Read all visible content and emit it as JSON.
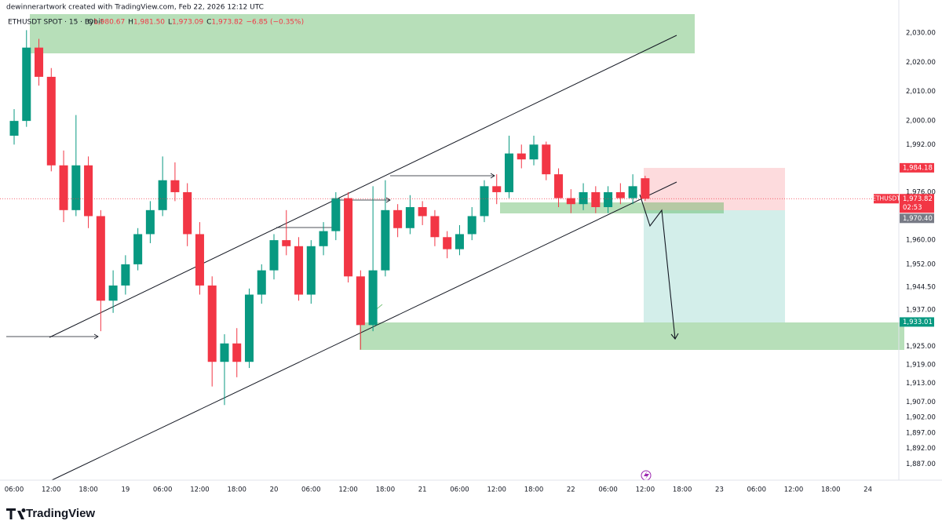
{
  "header": {
    "caption": "dewinnerartwork created with TradingView.com, Feb 22, 2026 12:12 UTC",
    "brand": "TradingView"
  },
  "chart_data": {
    "type": "candlestick",
    "symbol": "ETHUSDT SPOT · 15 · Bybit",
    "ohlc_legend": [
      {
        "key": "O",
        "text": "1,980.67"
      },
      {
        "key": "H",
        "text": "1,981.50"
      },
      {
        "key": "L",
        "text": "1,973.09"
      },
      {
        "key": "C",
        "text": "1,973.82"
      },
      {
        "key": "",
        "text": "−6.85 (−0.35%)"
      }
    ],
    "up_color": "#089981",
    "down_color": "#f23645",
    "log_scale": true,
    "grid": false,
    "xlim": [
      -1.27,
      143
    ],
    "ylim": [
      1881.9,
      2041.4
    ],
    "xticks": [
      {
        "value": 0,
        "label": "06:00"
      },
      {
        "value": 6,
        "label": "12:00"
      },
      {
        "value": 12,
        "label": "18:00"
      },
      {
        "value": 18,
        "label": "19"
      },
      {
        "value": 24,
        "label": "06:00"
      },
      {
        "value": 30,
        "label": "12:00"
      },
      {
        "value": 36,
        "label": "18:00"
      },
      {
        "value": 42,
        "label": "20"
      },
      {
        "value": 48,
        "label": "06:00"
      },
      {
        "value": 54,
        "label": "12:00"
      },
      {
        "value": 60,
        "label": "18:00"
      },
      {
        "value": 66,
        "label": "21"
      },
      {
        "value": 72,
        "label": "06:00"
      },
      {
        "value": 78,
        "label": "12:00"
      },
      {
        "value": 84,
        "label": "18:00"
      },
      {
        "value": 90,
        "label": "22"
      },
      {
        "value": 96,
        "label": "06:00"
      },
      {
        "value": 102,
        "label": "12:00"
      },
      {
        "value": 108,
        "label": "18:00"
      },
      {
        "value": 114,
        "label": "23"
      },
      {
        "value": 120,
        "label": "06:00"
      },
      {
        "value": 126,
        "label": "12:00"
      },
      {
        "value": 132,
        "label": "18:00"
      },
      {
        "value": 138,
        "label": "24"
      }
    ],
    "yticks": [
      {
        "value": 2030,
        "label": "2,030.00"
      },
      {
        "value": 2020,
        "label": "2,020.00"
      },
      {
        "value": 2010,
        "label": "2,010.00"
      },
      {
        "value": 2000,
        "label": "2,000.00"
      },
      {
        "value": 1992,
        "label": "1,992.00"
      },
      {
        "value": 1976,
        "label": "1,976.00"
      },
      {
        "value": 1960,
        "label": "1,960.00"
      },
      {
        "value": 1952,
        "label": "1,952.00"
      },
      {
        "value": 1944.5,
        "label": "1,944.50"
      },
      {
        "value": 1937,
        "label": "1,937.00"
      },
      {
        "value": 1925,
        "label": "1,925.00"
      },
      {
        "value": 1919,
        "label": "1,919.00"
      },
      {
        "value": 1913,
        "label": "1,913.00"
      },
      {
        "value": 1907,
        "label": "1,907.00"
      },
      {
        "value": 1902,
        "label": "1,902.00"
      },
      {
        "value": 1897,
        "label": "1,897.00"
      },
      {
        "value": 1892,
        "label": "1,892.00"
      },
      {
        "value": 1887,
        "label": "1,887.00"
      }
    ],
    "price_markers": [
      {
        "value": 1984.18,
        "label": "1,984.18",
        "color": "#f23645"
      },
      {
        "value": 1973.82,
        "label": "1,973.82",
        "color": "#f23645",
        "name": "ETHUSDT",
        "countdown": "02:53"
      },
      {
        "value": 1970.4,
        "label": "1,970.40",
        "color": "#787b86"
      },
      {
        "value": 1933.01,
        "label": "1,933.01",
        "color": "#089981"
      }
    ],
    "x": [
      0,
      2,
      4,
      6,
      8,
      10,
      12,
      14,
      16,
      18,
      20,
      22,
      24,
      26,
      28,
      30,
      32,
      34,
      36,
      38,
      40,
      42,
      44,
      46,
      48,
      50,
      52,
      54,
      56,
      58,
      60,
      62,
      64,
      66,
      68,
      70,
      72,
      74,
      76,
      78,
      80,
      82,
      84,
      86,
      88,
      90,
      92,
      94,
      96,
      98,
      100,
      102
    ],
    "open": [
      1995,
      2000,
      2025,
      2015,
      1985,
      1970,
      1985,
      1968,
      1940,
      1945,
      1952,
      1962,
      1970,
      1980,
      1976,
      1962,
      1945,
      1920,
      1926,
      1920,
      1942,
      1950,
      1960,
      1958,
      1942,
      1958,
      1963,
      1974,
      1948,
      1932,
      1950,
      1970,
      1964,
      1971,
      1968,
      1961,
      1957,
      1962,
      1968,
      1978,
      1976,
      1989,
      1987,
      1992,
      1982,
      1974,
      1972,
      1976,
      1971,
      1976,
      1974,
      1980.67
    ],
    "high": [
      2004,
      2031,
      2028,
      2018,
      1990,
      2002,
      1988,
      1970,
      1950,
      1955,
      1964,
      1973,
      1988,
      1986,
      1979,
      1966,
      1948,
      1929,
      1931,
      1944,
      1952,
      1962,
      1970,
      1961,
      1960,
      1966,
      1976,
      1976,
      1950,
      1978,
      1980,
      1972,
      1975,
      1973,
      1970,
      1963,
      1965,
      1971,
      1980,
      1982,
      1995,
      1992,
      1995,
      1993,
      1984,
      1977,
      1979,
      1978,
      1978,
      1979,
      1982,
      1981.5
    ],
    "low": [
      1992,
      1998,
      2012,
      1983,
      1966,
      1968,
      1964,
      1930,
      1936,
      1942,
      1950,
      1959,
      1968,
      1973,
      1958,
      1942,
      1912,
      1906,
      1915,
      1918,
      1939,
      1947,
      1955,
      1940,
      1939,
      1955,
      1960,
      1946,
      1924,
      1930,
      1948,
      1961,
      1962,
      1965,
      1958,
      1954,
      1955,
      1960,
      1966,
      1972,
      1974,
      1984,
      1985,
      1980,
      1971,
      1969,
      1970,
      1969,
      1969,
      1972,
      1972,
      1973.09
    ],
    "close": [
      2000,
      2025,
      2015,
      1985,
      1970,
      1985,
      1968,
      1940,
      1945,
      1952,
      1962,
      1970,
      1980,
      1976,
      1962,
      1945,
      1920,
      1926,
      1920,
      1942,
      1950,
      1960,
      1958,
      1942,
      1958,
      1963,
      1974,
      1948,
      1932,
      1950,
      1970,
      1964,
      1971,
      1968,
      1961,
      1957,
      1962,
      1968,
      1978,
      1976,
      1989,
      1987,
      1992,
      1982,
      1974,
      1972,
      1976,
      1971,
      1976,
      1974,
      1978,
      1973.82
    ]
  }
}
